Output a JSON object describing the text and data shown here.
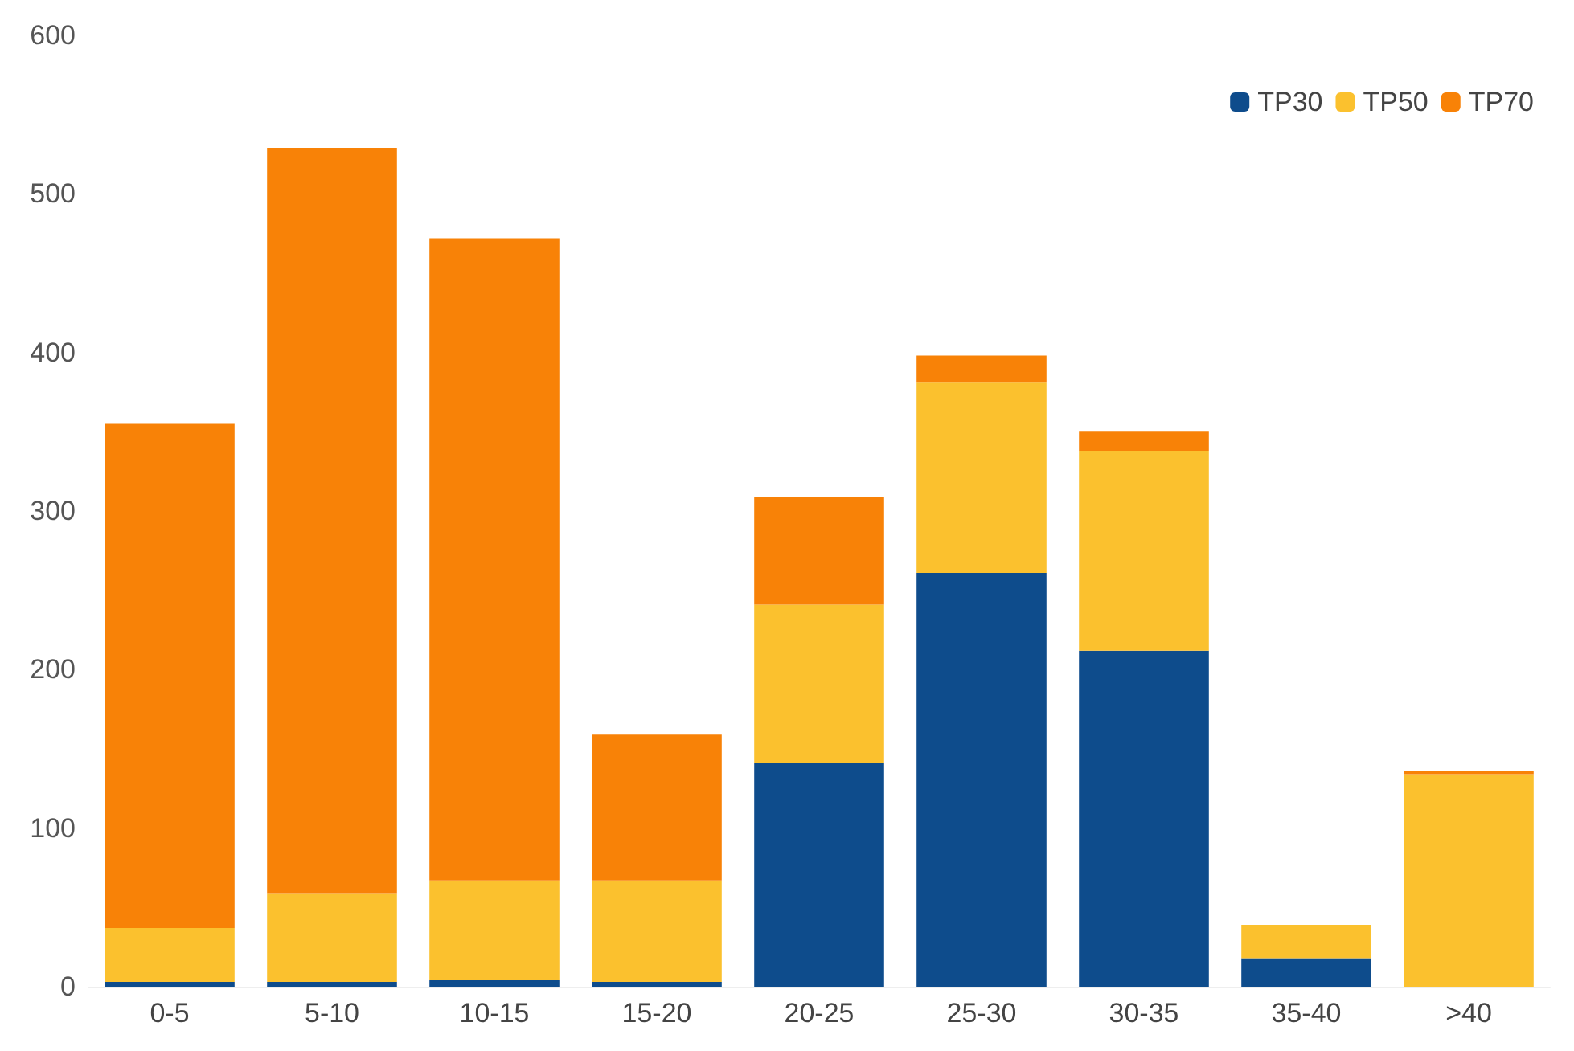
{
  "chart_data": {
    "type": "bar",
    "stacked": true,
    "categories": [
      "0-5",
      "5-10",
      "10-15",
      "15-20",
      "20-25",
      "25-30",
      "30-35",
      "35-40",
      ">40"
    ],
    "series": [
      {
        "name": "TP30",
        "color": "#0e4c8c",
        "values": [
          3,
          3,
          4,
          3,
          141,
          261,
          212,
          18,
          0
        ]
      },
      {
        "name": "TP50",
        "color": "#fbc12e",
        "values": [
          34,
          56,
          63,
          64,
          100,
          120,
          126,
          21,
          134
        ]
      },
      {
        "name": "TP70",
        "color": "#f88207",
        "values": [
          318,
          470,
          405,
          92,
          68,
          17,
          12,
          0,
          2
        ]
      }
    ],
    "ylim": [
      0,
      600
    ],
    "yticks": [
      0,
      100,
      200,
      300,
      400,
      500,
      600
    ],
    "grid": false,
    "legend": "top right"
  }
}
